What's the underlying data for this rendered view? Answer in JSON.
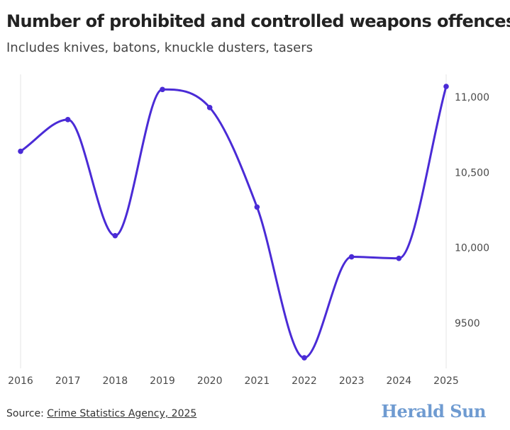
{
  "header": {
    "title": "Number of prohibited and controlled weapons offences",
    "subtitle": "Includes knives, batons, knuckle dusters, tasers"
  },
  "footer": {
    "source_prefix": "Source: ",
    "source_link": "Crime Statistics Agency, 2025",
    "brand": "Herald Sun"
  },
  "colors": {
    "line": "#4a2bd6",
    "brand": "#6f9bd1"
  },
  "chart_data": {
    "type": "line",
    "title": "Number of prohibited and controlled weapons offences",
    "subtitle": "Includes knives, batons, knuckle dusters, tasers",
    "xlabel": "",
    "ylabel": "",
    "categories": [
      "2016",
      "2017",
      "2018",
      "2019",
      "2020",
      "2021",
      "2022",
      "2023",
      "2024",
      "2025"
    ],
    "series": [
      {
        "values": [
          10640,
          10850,
          10080,
          11050,
          10930,
          10270,
          9270,
          9940,
          9930,
          11070
        ]
      }
    ],
    "ylim": [
      9200,
      11150
    ],
    "yticks": [
      9500,
      10000,
      10500,
      11000
    ],
    "ytick_labels": [
      "9500",
      "10,000",
      "10,500",
      "11,000"
    ],
    "y_axis_position": "right",
    "grid": false,
    "curve": "smooth"
  }
}
